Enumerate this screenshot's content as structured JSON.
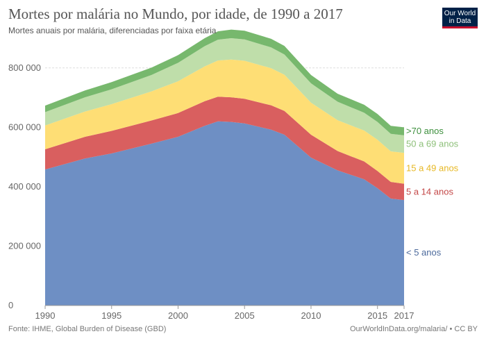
{
  "header": {
    "title": "Mortes por malária no Mundo, por idade, de 1990 a 2017",
    "subtitle": "Mortes anuais por malária, diferenciadas por faixa etária"
  },
  "logo": {
    "line1": "Our World",
    "line2": "in Data"
  },
  "footer": {
    "source_label": "Fonte:",
    "source_text": "IHME, Global Burden of Disease (GBD)",
    "credit": "OurWorldInData.org/malaria/ • CC BY"
  },
  "chart_data": {
    "type": "area",
    "stacked": true,
    "title": "Mortes por malária no Mundo, por idade, de 1990 a 2017",
    "subtitle": "Mortes anuais por malária, diferenciadas por faixa etária",
    "xlabel": "",
    "ylabel": "",
    "xlim": [
      1990,
      2017
    ],
    "ylim": [
      0,
      900000
    ],
    "grid": true,
    "x": [
      1990,
      1993,
      1995,
      1998,
      2000,
      2002,
      2003,
      2004,
      2005,
      2007,
      2008,
      2010,
      2012,
      2014,
      2015,
      2016,
      2017
    ],
    "series": [
      {
        "name": "< 5 anos",
        "color": "#6e8fc4",
        "values": [
          458000,
          495000,
          512000,
          545000,
          568000,
          605000,
          620000,
          618000,
          613000,
          592000,
          575000,
          498000,
          455000,
          425000,
          395000,
          360000,
          355000
        ]
      },
      {
        "name": "5 a 14 anos",
        "color": "#d95f5f",
        "values": [
          68000,
          73000,
          76000,
          78000,
          80000,
          83000,
          83000,
          83000,
          83000,
          82000,
          80000,
          77000,
          65000,
          60000,
          58000,
          56000,
          55000
        ]
      },
      {
        "name": "15 a 49 anos",
        "color": "#fede75",
        "values": [
          80000,
          85000,
          90000,
          98000,
          107000,
          117000,
          122000,
          127000,
          128000,
          125000,
          122000,
          108000,
          104000,
          104000,
          105000,
          103000,
          104000
        ]
      },
      {
        "name": "50 a 69 anos",
        "color": "#bfdeaa",
        "values": [
          45000,
          48000,
          50000,
          55000,
          62000,
          68000,
          70000,
          72000,
          72000,
          70000,
          68000,
          65000,
          62000,
          60000,
          60000,
          59000,
          59000
        ]
      },
      {
        "name": ">70 anos",
        "color": "#77b86d",
        "values": [
          22000,
          23000,
          24000,
          25000,
          26000,
          27000,
          28000,
          29000,
          29000,
          29000,
          29000,
          28000,
          27000,
          27000,
          27000,
          27000,
          27000
        ]
      }
    ],
    "y_ticks": [
      {
        "value": 0,
        "label": "0"
      },
      {
        "value": 200000,
        "label": "200 000"
      },
      {
        "value": 400000,
        "label": "400 000"
      },
      {
        "value": 600000,
        "label": "600 000"
      },
      {
        "value": 800000,
        "label": "800 000"
      }
    ],
    "x_ticks": [
      {
        "value": 1990,
        "label": "1990"
      },
      {
        "value": 1995,
        "label": "1995"
      },
      {
        "value": 2000,
        "label": "2000"
      },
      {
        "value": 2005,
        "label": "2005"
      },
      {
        "value": 2010,
        "label": "2010"
      },
      {
        "value": 2015,
        "label": "2015"
      },
      {
        "value": 2017,
        "label": "2017"
      }
    ],
    "legend": "right, inline labels"
  }
}
